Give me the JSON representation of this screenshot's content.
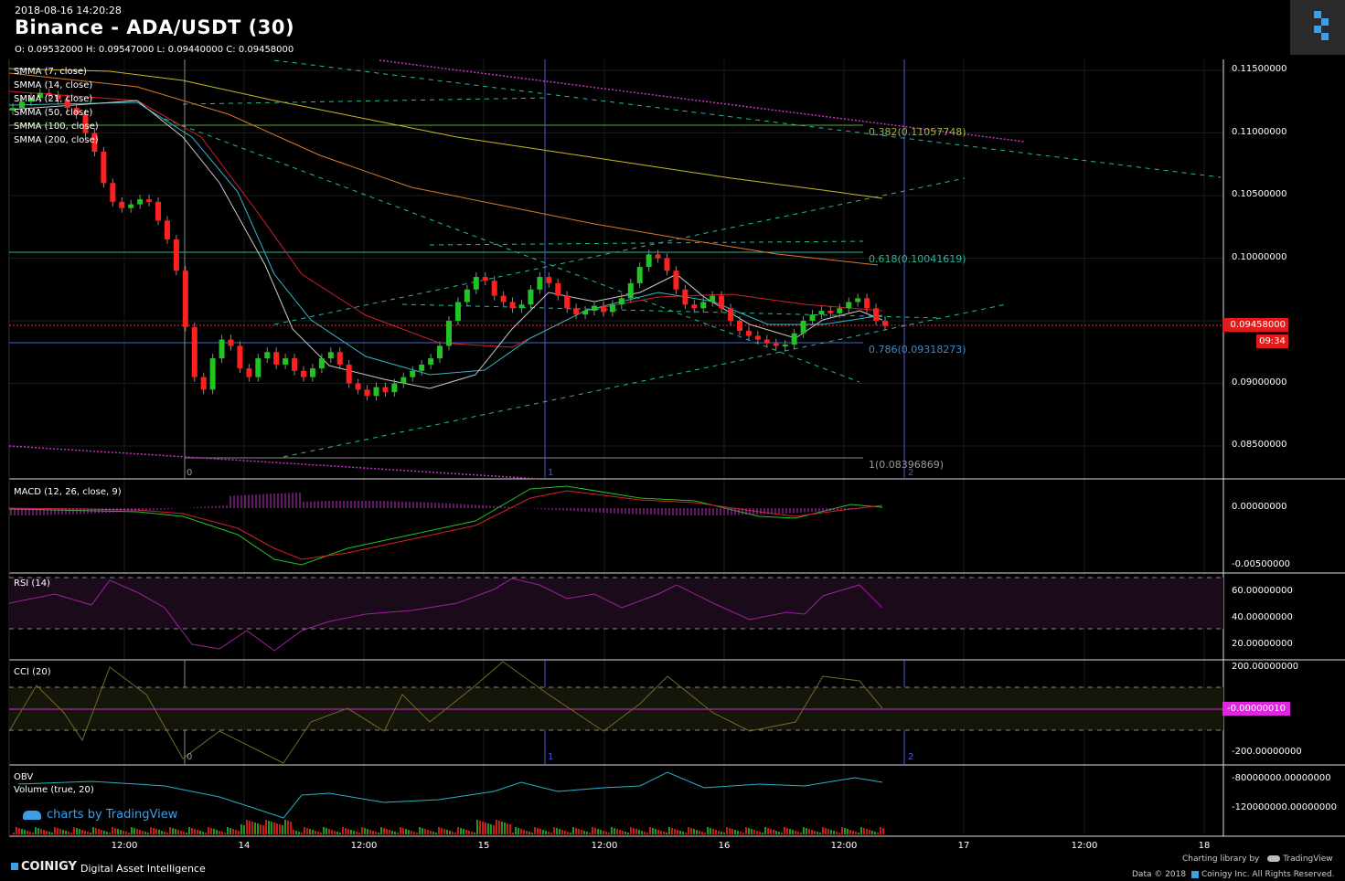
{
  "header": {
    "date": "2018-08-16 14:20:28",
    "title": "Binance - ADA/USDT (30)",
    "ohlc": "O: 0.09532000 H: 0.09547000 L: 0.09440000 C: 0.09458000"
  },
  "legend": [
    "SMMA (7, close)",
    "SMMA (14, close)",
    "SMMA (21, close)",
    "SMMA (50, close)",
    "SMMA (100, close)",
    "SMMA (200, close)"
  ],
  "panes": {
    "macd": "MACD (12, 26, close, 9)",
    "rsi": "RSI (14)",
    "cci": "CCI (20)",
    "obv": "OBV",
    "volume": "Volume (true, 20)"
  },
  "badges": {
    "last_price": "0.09458000",
    "countdown": "09:34",
    "cci_value": "-0.00000010"
  },
  "fib_labels": [
    "0.382(0.11057748)",
    "0.618(0.10041619)",
    "0.786(0.09318273)",
    "1(0.08396869)"
  ],
  "cycle_labels": [
    "0",
    "1",
    "2"
  ],
  "axes": {
    "price": [
      "0.11500000",
      "0.11000000",
      "0.10500000",
      "0.10000000",
      "0.09000000",
      "0.08500000"
    ],
    "macd": [
      "0.00000000",
      "-0.00500000"
    ],
    "rsi": [
      "60.00000000",
      "40.00000000",
      "20.00000000"
    ],
    "cci": [
      "200.00000000",
      "-200.00000000"
    ],
    "obv": [
      "-80000000.00000000",
      "-120000000.00000000"
    ],
    "time": [
      "12:00",
      "14",
      "12:00",
      "15",
      "12:00",
      "16",
      "12:00",
      "17",
      "12:00",
      "18"
    ]
  },
  "footer": {
    "tv_credit": "charts by TradingView",
    "brand": "COINIGY",
    "tagline": "Digital Asset Intelligence",
    "charting": "Charting library by",
    "tradingview": "TradingView",
    "data": "Data © 2018",
    "company": "Coinigy Inc. All Rights Reserved."
  },
  "colors": {
    "up": "#22c322",
    "down": "#ff2020",
    "smma7": "#cccccc",
    "smma14": "#2fb9c8",
    "smma21": "#d2202a",
    "smma100": "#d97a28",
    "smma200": "#c8b828",
    "trend": "#2ab89a",
    "magenta": "#c832c8",
    "rsi": "#a020a0",
    "cci": "#6e6e28",
    "obv": "#2ab0c8"
  },
  "chart_data": {
    "type": "line",
    "title": "Binance - ADA/USDT (30)",
    "series": [
      {
        "name": "SMMA (7, close)",
        "x": [
          "14 12:00",
          "15",
          "15 12:00",
          "16",
          "16 12:00"
        ],
        "values": [
          0.0905,
          0.091,
          0.0962,
          0.0958,
          0.095
        ]
      },
      {
        "name": "SMMA (200, close)",
        "x": [
          "14 12:00",
          "15",
          "15 12:00",
          "16",
          "16 12:00"
        ],
        "values": [
          0.113,
          0.1115,
          0.1085,
          0.106,
          0.1048
        ]
      }
    ],
    "price_ticks": [
      0.115,
      0.11,
      0.105,
      0.1,
      0.09,
      0.085
    ],
    "ylim": [
      0.0825,
      0.116
    ],
    "last_close": 0.09458,
    "fib_levels": [
      {
        "ratio": 0.382,
        "value": 0.11057748
      },
      {
        "ratio": 0.618,
        "value": 0.10041619
      },
      {
        "ratio": 0.786,
        "value": 0.09318273
      },
      {
        "ratio": 1,
        "value": 0.08396869
      }
    ],
    "indicators": {
      "macd_range": [
        -0.006,
        0.0015
      ],
      "rsi_levels": [
        70,
        30
      ],
      "cci_levels": [
        100,
        -100
      ],
      "cci_last": -1e-07
    }
  }
}
